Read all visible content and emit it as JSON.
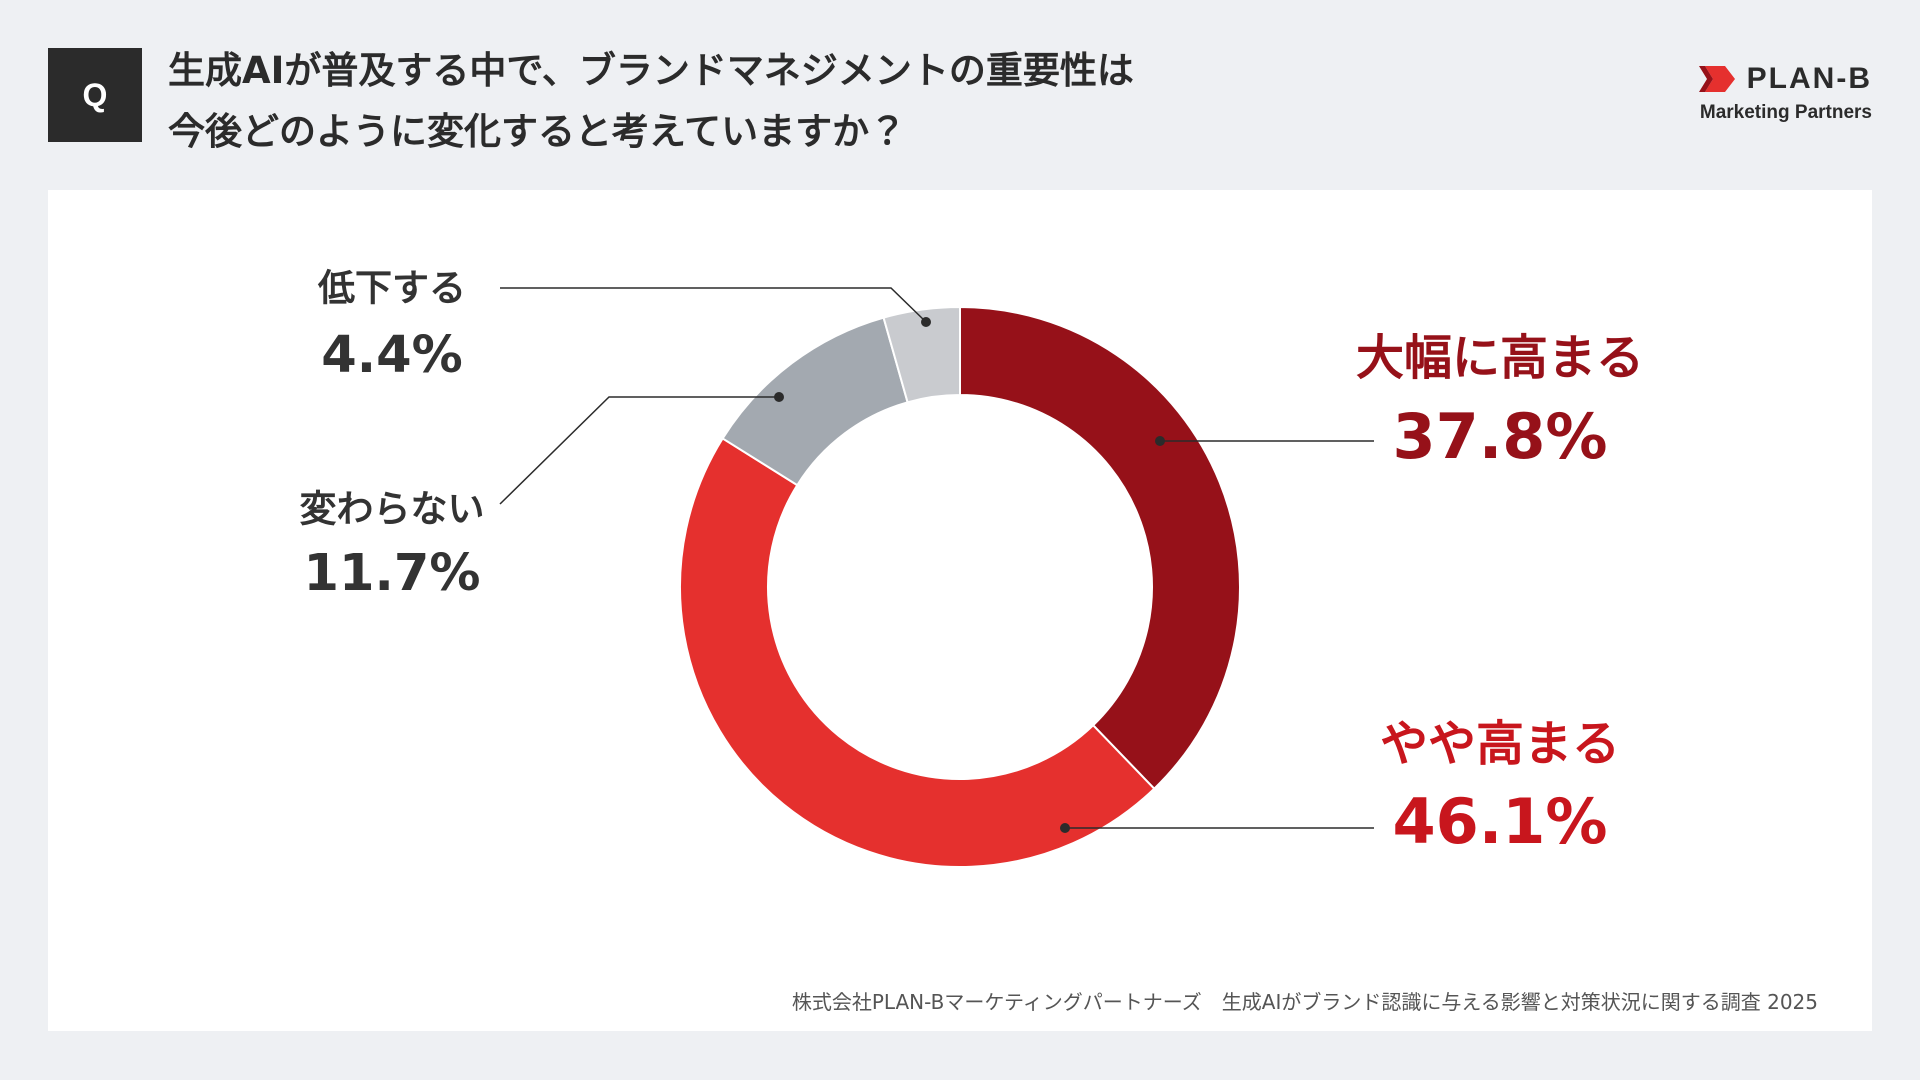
{
  "header": {
    "badge": "Q",
    "question": [
      "生成AIが普及する中で、ブランドマネジメントの重要性は",
      "今後どのように変化すると考えていますか？"
    ]
  },
  "logo": {
    "name": "PLAN-B",
    "tagline": "Marketing Partners"
  },
  "chart_data": {
    "type": "donut",
    "categories": [
      "大幅に高まる",
      "やや高まる",
      "変わらない",
      "低下する"
    ],
    "values": [
      37.8,
      46.1,
      11.7,
      4.4
    ],
    "value_labels": [
      "37.8%",
      "46.1%",
      "11.7%",
      "4.4%"
    ],
    "colors": [
      "#961119",
      "#e5302e",
      "#a3a9b0",
      "#c9cbcf"
    ],
    "label_colors": [
      "#961119",
      "#c8161d",
      "#333333",
      "#333333"
    ]
  },
  "source": "株式会社PLAN-Bマーケティングパートナーズ　生成AIがブランド認識に与える影響と対策状況に関する調査 2025"
}
